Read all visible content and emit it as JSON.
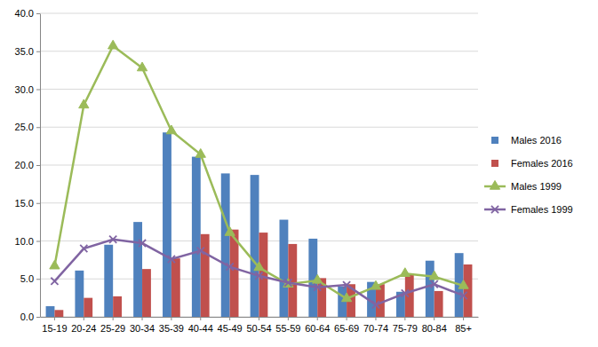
{
  "chart_data": {
    "type": "bar",
    "categories": [
      "15-19",
      "20-24",
      "25-29",
      "30-34",
      "35-39",
      "40-44",
      "45-49",
      "50-54",
      "55-59",
      "60-64",
      "65-69",
      "70-74",
      "75-79",
      "80-84",
      "85+"
    ],
    "series": [
      {
        "name": "Males 2016",
        "type": "bar",
        "color": "#4f81bd",
        "values": [
          1.4,
          6.1,
          9.5,
          12.5,
          24.3,
          21.1,
          18.9,
          18.7,
          12.8,
          10.3,
          4.0,
          4.6,
          3.3,
          7.4,
          8.4
        ]
      },
      {
        "name": "Females 2016",
        "type": "bar",
        "color": "#c0504d",
        "values": [
          0.9,
          2.5,
          2.7,
          6.3,
          7.7,
          10.9,
          11.5,
          11.1,
          9.6,
          5.1,
          4.3,
          4.3,
          5.7,
          3.4,
          6.9
        ]
      },
      {
        "name": "Males 1999",
        "type": "line",
        "color": "#9bbb59",
        "marker": "triangle",
        "values": [
          6.7,
          27.9,
          35.7,
          32.8,
          24.5,
          21.4,
          11.1,
          6.5,
          4.3,
          4.8,
          2.4,
          4.0,
          5.7,
          5.3,
          4.1
        ]
      },
      {
        "name": "Females 1999",
        "type": "line",
        "color": "#8064a2",
        "marker": "x",
        "values": [
          4.7,
          9.0,
          10.2,
          9.7,
          7.6,
          8.7,
          6.6,
          5.4,
          4.5,
          3.9,
          4.2,
          1.6,
          3.1,
          4.3,
          2.8
        ]
      }
    ],
    "ylim": [
      0,
      40
    ],
    "yticks": [
      {
        "value": 0,
        "label": "0.0"
      },
      {
        "value": 5,
        "label": "5.0"
      },
      {
        "value": 10,
        "label": "10.0"
      },
      {
        "value": 15,
        "label": "15.0"
      },
      {
        "value": 20,
        "label": "20.0"
      },
      {
        "value": 25,
        "label": "25.0"
      },
      {
        "value": 30,
        "label": "30.0"
      },
      {
        "value": 35,
        "label": "35.0"
      },
      {
        "value": 40,
        "label": "40.0"
      }
    ],
    "grid": true,
    "legend": "right"
  }
}
